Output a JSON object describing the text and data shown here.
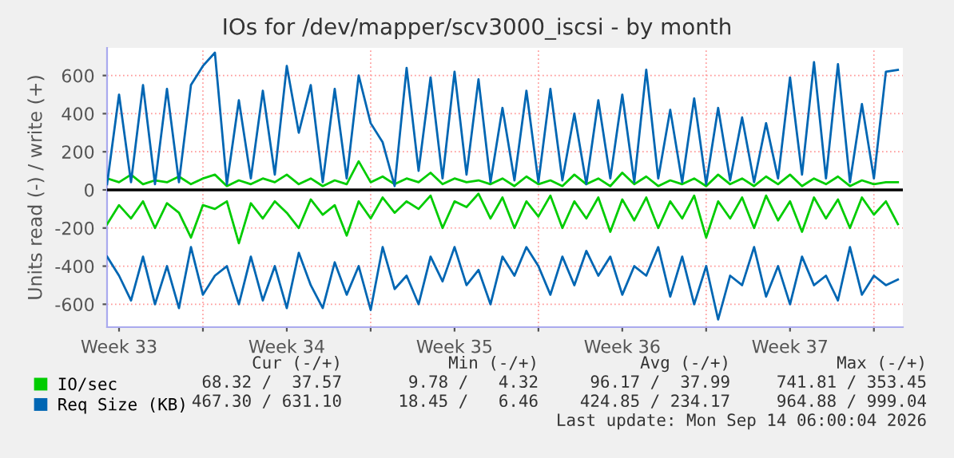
{
  "chart_data": {
    "type": "line",
    "title": "IOs for /dev/mapper/scv3000_iscsi - by month",
    "ylabel": "Units read (-) / write (+)",
    "x": [
      "2026-08-11T00:00",
      "2026-08-11T12:00",
      "2026-08-12T00:00",
      "2026-08-12T12:00",
      "2026-08-13T00:00",
      "2026-08-13T12:00",
      "2026-08-14T00:00",
      "2026-08-14T12:00",
      "2026-08-15T00:00",
      "2026-08-15T12:00",
      "2026-08-16T00:00",
      "2026-08-16T12:00",
      "2026-08-17T00:00",
      "2026-08-17T12:00",
      "2026-08-18T00:00",
      "2026-08-18T12:00",
      "2026-08-19T00:00",
      "2026-08-19T12:00",
      "2026-08-20T00:00",
      "2026-08-20T12:00",
      "2026-08-21T00:00",
      "2026-08-21T12:00",
      "2026-08-22T00:00",
      "2026-08-22T12:00",
      "2026-08-23T00:00",
      "2026-08-23T12:00",
      "2026-08-24T00:00",
      "2026-08-24T12:00",
      "2026-08-25T00:00",
      "2026-08-25T12:00",
      "2026-08-26T00:00",
      "2026-08-26T12:00",
      "2026-08-27T00:00",
      "2026-08-27T12:00",
      "2026-08-28T00:00",
      "2026-08-28T12:00",
      "2026-08-29T00:00",
      "2026-08-29T12:00",
      "2026-08-30T00:00",
      "2026-08-30T12:00",
      "2026-08-31T00:00",
      "2026-08-31T12:00",
      "2026-09-01T00:00",
      "2026-09-01T12:00",
      "2026-09-02T00:00",
      "2026-09-02T12:00",
      "2026-09-03T00:00",
      "2026-09-03T12:00",
      "2026-09-04T00:00",
      "2026-09-04T12:00",
      "2026-09-05T00:00",
      "2026-09-05T12:00",
      "2026-09-06T00:00",
      "2026-09-06T12:00",
      "2026-09-07T00:00",
      "2026-09-07T12:00",
      "2026-09-08T00:00",
      "2026-09-08T12:00",
      "2026-09-09T00:00",
      "2026-09-09T12:00",
      "2026-09-10T00:00",
      "2026-09-10T12:00",
      "2026-09-11T00:00",
      "2026-09-11T12:00",
      "2026-09-12T00:00",
      "2026-09-12T12:00",
      "2026-09-13T00:00"
    ],
    "xlim": [
      "2026-08-11T00:00",
      "2026-09-13T05:00"
    ],
    "ylim": [
      -720,
      745
    ],
    "xticks": [
      {
        "value": "2026-08-11T12:00",
        "label": "Week 33"
      },
      {
        "value": "2026-08-15T00:00",
        "label": null
      },
      {
        "value": "2026-08-18T12:00",
        "label": "Week 34"
      },
      {
        "value": "2026-08-22T00:00",
        "label": null
      },
      {
        "value": "2026-08-25T12:00",
        "label": "Week 35"
      },
      {
        "value": "2026-08-29T00:00",
        "label": null
      },
      {
        "value": "2026-09-01T12:00",
        "label": "Week 36"
      },
      {
        "value": "2026-09-05T00:00",
        "label": null
      },
      {
        "value": "2026-09-08T12:00",
        "label": "Week 37"
      },
      {
        "value": "2026-09-12T00:00",
        "label": null
      }
    ],
    "yticks": [
      -600,
      -400,
      -200,
      0,
      200,
      400,
      600
    ],
    "grid": true,
    "legend": "bottom",
    "marker": "none",
    "line_style": "solid",
    "ref_lines": [
      {
        "axis": "y",
        "value": 0,
        "color": "#000000"
      }
    ],
    "annotations": [
      "Cur (-/+)",
      "Min (-/+)",
      "Avg (-/+)",
      "Max (-/+)",
      "68.32 /  37.57",
      "9.78 /   4.32",
      "96.17 /  37.99",
      "741.81 / 353.45",
      "467.30 / 631.10",
      "18.45 /   6.46",
      "424.85 / 234.17",
      "964.88 / 999.04",
      "Last update: Mon Sep 14 06:00:04 2026"
    ],
    "series": [
      {
        "name": "IO/sec",
        "color": "#00cc00",
        "values": [
          60,
          40,
          80,
          30,
          50,
          40,
          70,
          30,
          60,
          80,
          20,
          50,
          30,
          60,
          40,
          80,
          30,
          60,
          20,
          50,
          30,
          150,
          40,
          70,
          30,
          60,
          40,
          90,
          30,
          60,
          40,
          50,
          30,
          60,
          20,
          70,
          30,
          50,
          20,
          80,
          30,
          60,
          20,
          90,
          30,
          70,
          20,
          50,
          30,
          60,
          20,
          80,
          30,
          60,
          20,
          70,
          30,
          80,
          20,
          60,
          30,
          70,
          20,
          50,
          30,
          40,
          40
        ]
      },
      {
        "color": "#00cc00",
        "values": [
          -180,
          -80,
          -150,
          -60,
          -200,
          -70,
          -120,
          -250,
          -80,
          -100,
          -60,
          -280,
          -70,
          -150,
          -60,
          -120,
          -200,
          -50,
          -130,
          -80,
          -240,
          -60,
          -150,
          -40,
          -120,
          -60,
          -100,
          -30,
          -200,
          -60,
          -90,
          -20,
          -150,
          -40,
          -200,
          -60,
          -140,
          -30,
          -200,
          -60,
          -150,
          -40,
          -220,
          -50,
          -160,
          -40,
          -200,
          -60,
          -150,
          -30,
          -250,
          -60,
          -150,
          -40,
          -200,
          -30,
          -160,
          -60,
          -220,
          -40,
          -150,
          -50,
          -200,
          -40,
          -130,
          -60,
          -180
        ]
      },
      {
        "name": "Req Size (KB)",
        "color": "#0066b3",
        "values": [
          30,
          500,
          40,
          550,
          30,
          530,
          40,
          550,
          650,
          720,
          30,
          470,
          60,
          520,
          80,
          650,
          300,
          550,
          40,
          530,
          60,
          600,
          350,
          250,
          20,
          640,
          100,
          590,
          60,
          620,
          80,
          580,
          40,
          430,
          50,
          520,
          40,
          530,
          50,
          400,
          30,
          470,
          60,
          500,
          40,
          630,
          60,
          420,
          40,
          480,
          30,
          430,
          50,
          380,
          40,
          350,
          60,
          590,
          80,
          670,
          60,
          660,
          40,
          450,
          60,
          620,
          630
        ]
      },
      {
        "color": "#0066b3",
        "values": [
          -350,
          -450,
          -580,
          -350,
          -600,
          -400,
          -620,
          -300,
          -550,
          -450,
          -400,
          -600,
          -350,
          -580,
          -400,
          -620,
          -330,
          -500,
          -620,
          -380,
          -550,
          -400,
          -630,
          -300,
          -520,
          -450,
          -600,
          -350,
          -480,
          -300,
          -500,
          -420,
          -600,
          -350,
          -450,
          -300,
          -400,
          -550,
          -350,
          -500,
          -320,
          -450,
          -350,
          -550,
          -400,
          -450,
          -300,
          -560,
          -350,
          -600,
          -400,
          -680,
          -450,
          -500,
          -300,
          -560,
          -400,
          -600,
          -350,
          -500,
          -450,
          -580,
          -300,
          -550,
          -450,
          -500,
          -470
        ]
      }
    ]
  }
}
